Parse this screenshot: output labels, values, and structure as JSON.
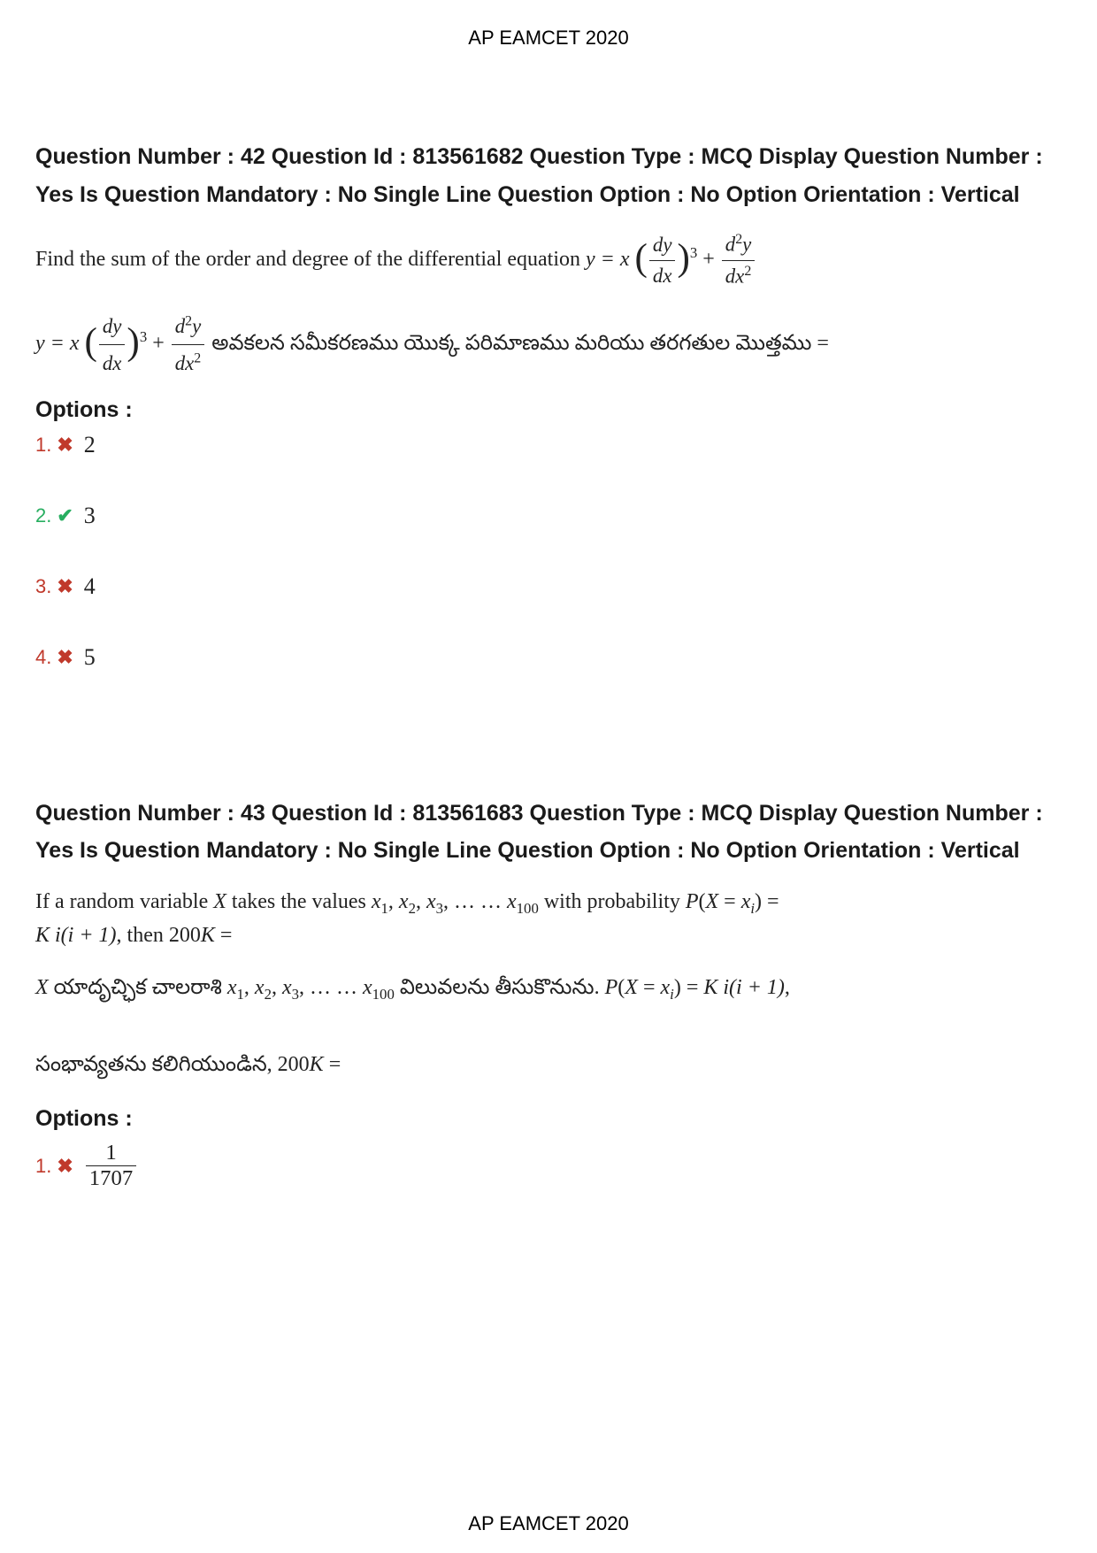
{
  "header": "AP EAMCET 2020",
  "footer": "AP EAMCET 2020",
  "questions": [
    {
      "meta": "Question Number : 42 Question Id : 813561682 Question Type : MCQ Display Question Number : Yes Is Question Mandatory : No Single Line Question Option : No Option Orientation : Vertical",
      "body_en_prefix": "Find the sum of the order and degree of the differential equation ",
      "body_te_suffix": " అవకలన సమీకరణము యొక్క పరిమాణము మరియు తరగతుల మొత్తము =",
      "options_label": "Options :",
      "options": [
        {
          "num": "1.",
          "mark": "wrong",
          "value": "2"
        },
        {
          "num": "2.",
          "mark": "correct",
          "value": "3"
        },
        {
          "num": "3.",
          "mark": "wrong",
          "value": "4"
        },
        {
          "num": "4.",
          "mark": "wrong",
          "value": "5"
        }
      ]
    },
    {
      "meta": "Question Number : 43 Question Id : 813561683 Question Type : MCQ Display Question Number : Yes Is Question Mandatory : No Single Line Question Option : No Option Orientation : Vertical",
      "body_en_line1_prefix": "If a random variable ",
      "body_en_line1_mid": " takes the values ",
      "body_en_line1_suffix": " with probability ",
      "body_en_line2_prefix": ", then ",
      "body_te_line1_prefix": " యాదృచ్ఛిక చాలరాశి ",
      "body_te_line1_suffix": " విలువలను తీసుకొనును. ",
      "body_te_line2": "సంభావ్యతను కలిగియుండిన, ",
      "K_expr": "K i(i + 1)",
      "result_expr": "200K =",
      "options_label": "Options :",
      "options": [
        {
          "num": "1.",
          "mark": "wrong",
          "frac_num": "1",
          "frac_den": "1707"
        }
      ]
    }
  ],
  "colors": {
    "text": "#000000",
    "body": "#222222",
    "wrong": "#c0392b",
    "correct": "#27ae60",
    "background": "#ffffff"
  }
}
